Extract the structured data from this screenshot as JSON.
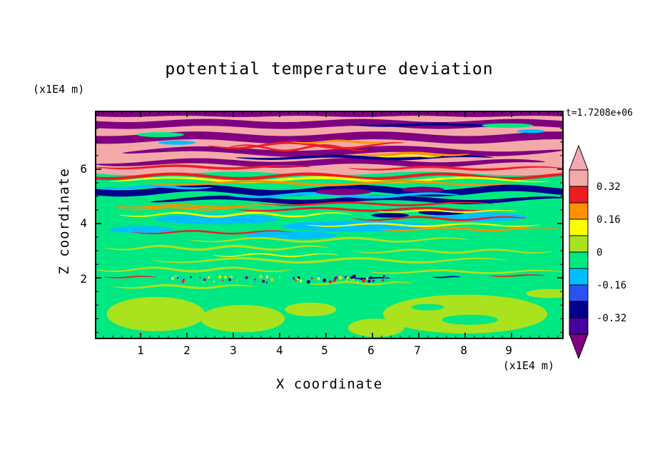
{
  "title": "potential temperature deviation",
  "time_label": "t=1.7208e+06",
  "z_axis": {
    "label": "Z coordinate",
    "units": "(x1E4 m)",
    "ticks": [
      {
        "value": "6",
        "frac": 0.256
      },
      {
        "value": "4",
        "frac": 0.494
      },
      {
        "value": "2",
        "frac": 0.738
      }
    ]
  },
  "x_axis": {
    "label": "X coordinate",
    "units": "(x1E4 m)",
    "ticks": [
      {
        "value": "1",
        "frac": 0.0974
      },
      {
        "value": "2",
        "frac": 0.1963
      },
      {
        "value": "3",
        "frac": 0.2953
      },
      {
        "value": "4",
        "frac": 0.394
      },
      {
        "value": "5",
        "frac": 0.49
      },
      {
        "value": "6",
        "frac": 0.589
      },
      {
        "value": "7",
        "frac": 0.688
      },
      {
        "value": "8",
        "frac": 0.787
      },
      {
        "value": "9",
        "frac": 0.883
      }
    ]
  },
  "colorbar": {
    "top_arrow": "#F4A9B8",
    "bottom_arrow": "#800080",
    "bands": [
      "#F4A9A9",
      "#ED1C24",
      "#FF9000",
      "#FFFF00",
      "#AAE21E",
      "#00E882",
      "#00BFFF",
      "#2A52F0",
      "#00008B",
      "#46009B"
    ],
    "labels": [
      {
        "text": "0.32",
        "boundary": 1
      },
      {
        "text": "0.16",
        "boundary": 3
      },
      {
        "text": "0",
        "boundary": 5
      },
      {
        "text": "-0.16",
        "boundary": 7
      },
      {
        "text": "-0.32",
        "boundary": 9
      }
    ]
  },
  "chart_data": {
    "type": "heatmap",
    "title": "potential temperature deviation",
    "xlabel": "X coordinate",
    "ylabel": "Z coordinate",
    "x_units": "(x1E4 m)",
    "z_units": "(x1E4 m)",
    "x_range": [
      0,
      10.2
    ],
    "z_range": [
      0,
      8.1
    ],
    "time_annotation": "t=1.7208e+06",
    "legend_position": "right",
    "grid": false,
    "colorbar_levels": [
      0.32,
      0.16,
      0,
      -0.16,
      -0.32
    ],
    "contour_bands": [
      {
        "range": "> 0.40",
        "color": "#F4A9B8"
      },
      {
        "range": "0.32 to 0.40",
        "color": "#F4A9A9"
      },
      {
        "range": "0.24 to 0.32",
        "color": "#ED1C24"
      },
      {
        "range": "0.16 to 0.24",
        "color": "#FF9000"
      },
      {
        "range": "0.08 to 0.16",
        "color": "#FFFF00"
      },
      {
        "range": "0.00 to 0.08",
        "color": "#AAE21E"
      },
      {
        "range": "-0.08 to 0.00",
        "color": "#00E882"
      },
      {
        "range": "-0.16 to -0.08",
        "color": "#00BFFF"
      },
      {
        "range": "-0.24 to -0.16",
        "color": "#2A52F0"
      },
      {
        "range": "-0.32 to -0.24",
        "color": "#00008B"
      },
      {
        "range": "-0.40 to -0.32",
        "color": "#46009B"
      },
      {
        "range": "< -0.40",
        "color": "#800080"
      }
    ],
    "field": {
      "background": "#00E882",
      "layers": [
        {
          "s": "e",
          "c": "#AAE21E",
          "cx": 0.13,
          "cy": 0.89,
          "rx": 0.105,
          "ry": 0.075
        },
        {
          "s": "e",
          "c": "#AAE21E",
          "cx": 0.315,
          "cy": 0.91,
          "rx": 0.09,
          "ry": 0.06
        },
        {
          "s": "e",
          "c": "#AAE21E",
          "cx": 0.46,
          "cy": 0.87,
          "rx": 0.055,
          "ry": 0.03
        },
        {
          "s": "e",
          "c": "#AAE21E",
          "cx": 0.79,
          "cy": 0.89,
          "rx": 0.175,
          "ry": 0.085
        },
        {
          "s": "e",
          "c": "#AAE21E",
          "cx": 0.6,
          "cy": 0.95,
          "rx": 0.06,
          "ry": 0.04
        },
        {
          "s": "e",
          "c": "#00E882",
          "cx": 0.8,
          "cy": 0.915,
          "rx": 0.06,
          "ry": 0.022
        },
        {
          "s": "e",
          "c": "#00E882",
          "cx": 0.71,
          "cy": 0.86,
          "rx": 0.035,
          "ry": 0.014
        },
        {
          "s": "e",
          "c": "#AAE21E",
          "cx": 0.97,
          "cy": 0.8,
          "rx": 0.05,
          "ry": 0.02
        },
        {
          "s": "b",
          "c": "#AAE21E",
          "x0": 0.04,
          "x1": 0.34,
          "yc": 0.77,
          "th": 0.01,
          "amp": 0.006,
          "freq": 2,
          "taper": true
        },
        {
          "s": "b",
          "c": "#AAE21E",
          "x0": 0.45,
          "x1": 0.68,
          "yc": 0.755,
          "th": 0.008,
          "amp": 0.005,
          "freq": 2,
          "taper": true
        },
        {
          "s": "b",
          "c": "#AAE21E",
          "x0": 0.0,
          "x1": 0.42,
          "yc": 0.695,
          "th": 0.01,
          "amp": 0.008,
          "freq": 2.5,
          "taper": true
        },
        {
          "s": "b",
          "c": "#AAE21E",
          "x0": 0.58,
          "x1": 1.0,
          "yc": 0.705,
          "th": 0.009,
          "amp": 0.006,
          "freq": 2,
          "taper": true
        },
        {
          "s": "b",
          "c": "#AAE21E",
          "x0": 0.12,
          "x1": 0.88,
          "yc": 0.655,
          "th": 0.011,
          "amp": 0.009,
          "freq": 3,
          "taper": true
        },
        {
          "s": "b",
          "c": "#AAE21E",
          "x0": 0.55,
          "x1": 0.98,
          "yc": 0.615,
          "th": 0.009,
          "amp": 0.007,
          "freq": 2.5,
          "taper": true
        },
        {
          "s": "b",
          "c": "#AAE21E",
          "x0": 0.02,
          "x1": 0.5,
          "yc": 0.6,
          "th": 0.011,
          "amp": 0.008,
          "freq": 3,
          "taper": true
        },
        {
          "s": "b",
          "c": "#FFFF00",
          "x0": 0.25,
          "x1": 0.52,
          "yc": 0.632,
          "th": 0.006,
          "amp": 0.006,
          "freq": 2,
          "taper": true
        },
        {
          "s": "b",
          "c": "#ED1C24",
          "x0": 0.02,
          "x1": 0.13,
          "yc": 0.728,
          "th": 0.006,
          "amp": 0.003,
          "freq": 1,
          "taper": true
        },
        {
          "s": "b",
          "c": "#ED1C24",
          "x0": 0.84,
          "x1": 0.96,
          "yc": 0.722,
          "th": 0.006,
          "amp": 0.003,
          "freq": 1,
          "taper": true
        },
        {
          "s": "b",
          "c": "#00008B",
          "x0": 0.55,
          "x1": 0.63,
          "yc": 0.733,
          "th": 0.007,
          "amp": 0.002,
          "freq": 1,
          "taper": true
        },
        {
          "s": "b",
          "c": "#00008B",
          "x0": 0.72,
          "x1": 0.78,
          "yc": 0.728,
          "th": 0.006,
          "amp": 0.002,
          "freq": 1,
          "taper": true
        },
        {
          "s": "sp",
          "y": 0.737,
          "spread": 0.03,
          "x0": 0.16,
          "x1": 0.62,
          "count": 70,
          "seed": 7,
          "colors": [
            "#00008B",
            "#ED1C24",
            "#FFFF00",
            "#00BFFF",
            "#800080",
            "#AAE21E"
          ]
        },
        {
          "s": "e",
          "c": "#00BFFF",
          "cx": 0.26,
          "cy": 0.475,
          "rx": 0.13,
          "ry": 0.022
        },
        {
          "s": "e",
          "c": "#00BFFF",
          "cx": 0.56,
          "cy": 0.505,
          "rx": 0.16,
          "ry": 0.024
        },
        {
          "s": "e",
          "c": "#00BFFF",
          "cx": 0.82,
          "cy": 0.465,
          "rx": 0.1,
          "ry": 0.02
        },
        {
          "s": "e",
          "c": "#00BFFF",
          "cx": 0.42,
          "cy": 0.545,
          "rx": 0.1,
          "ry": 0.016
        },
        {
          "s": "e",
          "c": "#00BFFF",
          "cx": 0.1,
          "cy": 0.52,
          "rx": 0.07,
          "ry": 0.015
        },
        {
          "s": "b",
          "c": "#AAE21E",
          "x0": 0.2,
          "x1": 0.8,
          "yc": 0.565,
          "th": 0.01,
          "amp": 0.008,
          "freq": 3,
          "taper": true
        },
        {
          "s": "b",
          "c": "#FFFF00",
          "x0": 0.05,
          "x1": 0.55,
          "yc": 0.455,
          "th": 0.009,
          "amp": 0.008,
          "freq": 3,
          "taper": true
        },
        {
          "s": "b",
          "c": "#FFFF00",
          "x0": 0.45,
          "x1": 0.95,
          "yc": 0.5,
          "th": 0.008,
          "amp": 0.006,
          "freq": 2.5,
          "taper": true
        },
        {
          "s": "b",
          "c": "#ED1C24",
          "x0": 0.55,
          "x1": 0.92,
          "yc": 0.472,
          "th": 0.009,
          "amp": 0.007,
          "freq": 2,
          "taper": true
        },
        {
          "s": "b",
          "c": "#ED1C24",
          "x0": 0.08,
          "x1": 0.42,
          "yc": 0.532,
          "th": 0.008,
          "amp": 0.006,
          "freq": 2,
          "taper": true
        },
        {
          "s": "b",
          "c": "#FF9000",
          "x0": 0.6,
          "x1": 0.99,
          "yc": 0.518,
          "th": 0.009,
          "amp": 0.006,
          "freq": 2,
          "taper": true
        },
        {
          "s": "e",
          "c": "#00008B",
          "cx": 0.74,
          "cy": 0.445,
          "rx": 0.05,
          "ry": 0.012
        },
        {
          "s": "e",
          "c": "#00008B",
          "cx": 0.63,
          "cy": 0.458,
          "rx": 0.04,
          "ry": 0.01
        },
        {
          "s": "b",
          "c": "#ED1C24",
          "x0": 0.3,
          "x1": 0.88,
          "yc": 0.432,
          "th": 0.01,
          "amp": 0.006,
          "freq": 2.5,
          "taper": true
        },
        {
          "s": "b",
          "c": "#FF9000",
          "x0": 0.05,
          "x1": 0.35,
          "yc": 0.428,
          "th": 0.009,
          "amp": 0.005,
          "freq": 2,
          "taper": true
        },
        {
          "s": "b",
          "c": "#FFFF00",
          "x0": 0.6,
          "x1": 0.9,
          "yc": 0.44,
          "th": 0.007,
          "amp": 0.004,
          "freq": 2,
          "taper": true
        },
        {
          "s": "b",
          "c": "#00008B",
          "x0": 0.0,
          "x1": 1.0,
          "yc": 0.35,
          "th": 0.028,
          "amp": 0.012,
          "freq": 3,
          "ph": 0.5
        },
        {
          "s": "b",
          "c": "#00008B",
          "x0": 0.12,
          "x1": 1.0,
          "yc": 0.39,
          "th": 0.022,
          "amp": 0.01,
          "freq": 2.5,
          "ph": 2,
          "taper": true
        },
        {
          "s": "b",
          "c": "#00BFFF",
          "x0": 0.28,
          "x1": 0.78,
          "yc": 0.37,
          "th": 0.014,
          "amp": 0.008,
          "freq": 2,
          "taper": true
        },
        {
          "s": "b",
          "c": "#00BFFF",
          "x0": 0.0,
          "x1": 0.25,
          "yc": 0.335,
          "th": 0.012,
          "amp": 0.005,
          "freq": 1.5,
          "taper": true
        },
        {
          "s": "e",
          "c": "#800080",
          "cx": 0.53,
          "cy": 0.355,
          "rx": 0.06,
          "ry": 0.014
        },
        {
          "s": "e",
          "c": "#800080",
          "cx": 0.7,
          "cy": 0.345,
          "rx": 0.045,
          "ry": 0.012
        },
        {
          "s": "b",
          "c": "#ED1C24",
          "x0": 0.35,
          "x1": 0.85,
          "yc": 0.408,
          "th": 0.009,
          "amp": 0.006,
          "freq": 2,
          "taper": true
        },
        {
          "s": "b",
          "c": "#FF9000",
          "x0": 0.04,
          "x1": 0.4,
          "yc": 0.418,
          "th": 0.009,
          "amp": 0.005,
          "freq": 2,
          "taper": true
        },
        {
          "s": "b",
          "c": "#F4A9A9",
          "x0": 0.0,
          "x1": 1.0,
          "yc": 0.135,
          "th": 0.28,
          "amp": 0.008,
          "freq": 2.5
        },
        {
          "s": "b",
          "c": "#ED1C24",
          "x0": 0.0,
          "x1": 1.0,
          "yc": 0.287,
          "th": 0.013,
          "amp": 0.01,
          "freq": 3.5,
          "ph": 1
        },
        {
          "s": "b",
          "c": "#FFFF00",
          "x0": 0.03,
          "x1": 0.97,
          "yc": 0.302,
          "th": 0.012,
          "amp": 0.009,
          "freq": 3,
          "ph": 2,
          "taper": true
        },
        {
          "s": "b",
          "c": "#FF9000",
          "x0": 0.1,
          "x1": 0.9,
          "yc": 0.317,
          "th": 0.011,
          "amp": 0.008,
          "freq": 2.5,
          "taper": true
        },
        {
          "s": "b",
          "c": "#800080",
          "x0": 0.0,
          "x1": 1.0,
          "yc": 0.058,
          "th": 0.03,
          "amp": 0.007,
          "freq": 3,
          "ph": 0.3
        },
        {
          "s": "b",
          "c": "#800080",
          "x0": 0.0,
          "x1": 1.0,
          "yc": 0.118,
          "th": 0.034,
          "amp": 0.01,
          "freq": 2.6,
          "ph": 1.2
        },
        {
          "s": "b",
          "c": "#800080",
          "x0": 0.06,
          "x1": 1.0,
          "yc": 0.178,
          "th": 0.028,
          "amp": 0.011,
          "freq": 2.2,
          "ph": 2.4,
          "taper": true
        },
        {
          "s": "b",
          "c": "#800080",
          "x0": 0.0,
          "x1": 0.96,
          "yc": 0.228,
          "th": 0.026,
          "amp": 0.009,
          "freq": 2.8,
          "ph": 0.8,
          "taper": true
        },
        {
          "s": "b",
          "c": "#00008B",
          "x0": 0.3,
          "x1": 0.85,
          "yc": 0.205,
          "th": 0.013,
          "amp": 0.006,
          "freq": 2,
          "taper": true
        },
        {
          "s": "b",
          "c": "#00008B",
          "x0": 0.55,
          "x1": 0.9,
          "yc": 0.062,
          "th": 0.012,
          "amp": 0.004,
          "freq": 1.5,
          "taper": true
        },
        {
          "s": "b",
          "c": "#ED1C24",
          "x0": 0.24,
          "x1": 0.66,
          "yc": 0.152,
          "th": 0.011,
          "amp": 0.012,
          "freq": 1.8,
          "taper": true
        },
        {
          "s": "b",
          "c": "#ED1C24",
          "x0": 0.28,
          "x1": 0.58,
          "yc": 0.163,
          "th": 0.009,
          "amp": 0.012,
          "freq": 1.8,
          "ph": 3.1,
          "taper": true
        },
        {
          "s": "b",
          "c": "#FF9000",
          "x0": 0.42,
          "x1": 0.62,
          "yc": 0.136,
          "th": 0.009,
          "amp": 0.005,
          "freq": 1.5,
          "taper": true
        },
        {
          "s": "b",
          "c": "#ED1C24",
          "x0": 0.0,
          "x1": 0.46,
          "yc": 0.247,
          "th": 0.011,
          "amp": 0.006,
          "freq": 2,
          "taper": true
        },
        {
          "s": "b",
          "c": "#ED1C24",
          "x0": 0.54,
          "x1": 1.0,
          "yc": 0.252,
          "th": 0.01,
          "amp": 0.006,
          "freq": 2,
          "taper": true
        },
        {
          "s": "b",
          "c": "#FF9000",
          "x0": 0.56,
          "x1": 0.8,
          "yc": 0.19,
          "th": 0.011,
          "amp": 0.005,
          "freq": 1.5,
          "taper": true
        },
        {
          "s": "b",
          "c": "#FFFF00",
          "x0": 0.6,
          "x1": 0.74,
          "yc": 0.198,
          "th": 0.007,
          "amp": 0.004,
          "freq": 1.5,
          "taper": true
        },
        {
          "s": "e",
          "c": "#00E882",
          "cx": 0.14,
          "cy": 0.105,
          "rx": 0.05,
          "ry": 0.011
        },
        {
          "s": "e",
          "c": "#00BFFF",
          "cx": 0.175,
          "cy": 0.14,
          "rx": 0.04,
          "ry": 0.009
        },
        {
          "s": "e",
          "c": "#00E882",
          "cx": 0.88,
          "cy": 0.065,
          "rx": 0.055,
          "ry": 0.01
        },
        {
          "s": "e",
          "c": "#00BFFF",
          "cx": 0.93,
          "cy": 0.09,
          "rx": 0.03,
          "ry": 0.008
        },
        {
          "s": "b",
          "c": "#800080",
          "x0": 0.0,
          "x1": 1.0,
          "yc": 0.012,
          "th": 0.026,
          "amp": 0.003,
          "freq": 4
        }
      ]
    }
  }
}
